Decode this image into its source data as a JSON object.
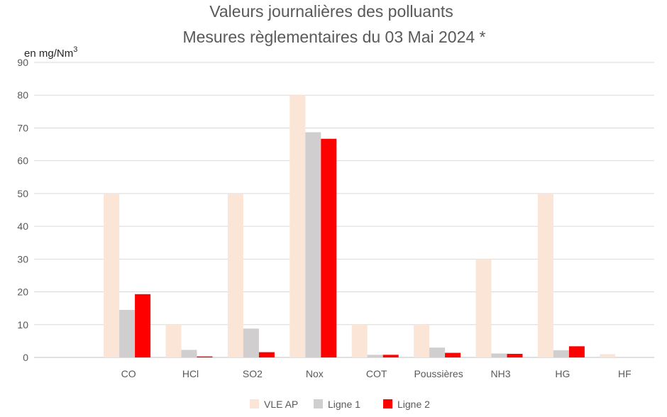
{
  "chart_data": {
    "type": "bar",
    "title_lines": [
      "Valeurs journalières des polluants",
      "Mesures règlementaires du 03 Mai 2024 *"
    ],
    "ylabel": "en mg/Nm",
    "ylabel_superscript": "3",
    "ylim": [
      0,
      90
    ],
    "yticks": [
      0,
      10,
      20,
      30,
      40,
      50,
      60,
      70,
      80,
      90
    ],
    "grid": true,
    "legend_position": "bottom",
    "categories": [
      "",
      "CO",
      "HCl",
      "SO2",
      "Nox",
      "COT",
      "Poussières",
      "NH3",
      "HG",
      "HF"
    ],
    "series": [
      {
        "name": "VLE AP",
        "color": "#fbe5d6",
        "values": [
          null,
          50,
          10,
          50,
          80,
          10,
          10,
          30,
          50,
          1
        ]
      },
      {
        "name": "Ligne 1",
        "color": "#d0cece",
        "values": [
          null,
          14.5,
          2.3,
          8.8,
          68.7,
          0.8,
          3.0,
          1.2,
          2.2,
          0
        ]
      },
      {
        "name": "Ligne 2",
        "color": "#ff0000",
        "values": [
          null,
          19.3,
          0.3,
          1.6,
          66.7,
          0.8,
          1.4,
          1.1,
          3.4,
          0
        ]
      }
    ]
  }
}
